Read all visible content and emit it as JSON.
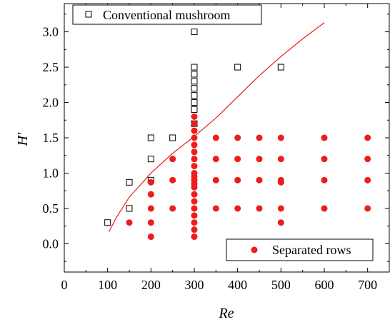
{
  "chart_data": {
    "type": "scatter",
    "xlabel": "Re",
    "ylabel": "H′",
    "xlim": [
      0,
      750
    ],
    "ylim": [
      -0.4,
      3.4
    ],
    "xticks": [
      0,
      100,
      200,
      300,
      400,
      500,
      600,
      700
    ],
    "yticks": [
      0.0,
      0.5,
      1.0,
      1.5,
      2.0,
      2.5,
      3.0
    ],
    "xtick_labels": [
      "0",
      "100",
      "200",
      "300",
      "400",
      "500",
      "600",
      "700"
    ],
    "ytick_labels": [
      "0.0",
      "0.5",
      "1.0",
      "1.5",
      "2.0",
      "2.5",
      "3.0"
    ],
    "grid": false,
    "colors": {
      "separated": "#ee1c1c",
      "curve": "#ee1c1c",
      "conventional": "#000000"
    },
    "series": [
      {
        "name": "Conventional mushroom",
        "marker": "open-square",
        "points": [
          [
            100,
            0.3
          ],
          [
            150,
            0.5
          ],
          [
            150,
            0.87
          ],
          [
            200,
            0.9
          ],
          [
            200,
            1.2
          ],
          [
            200,
            1.5
          ],
          [
            250,
            1.5
          ],
          [
            300,
            1.7
          ],
          [
            300,
            1.9
          ],
          [
            300,
            2.0
          ],
          [
            300,
            2.1
          ],
          [
            300,
            2.2
          ],
          [
            300,
            2.3
          ],
          [
            300,
            2.4
          ],
          [
            300,
            2.5
          ],
          [
            300,
            3.0
          ],
          [
            400,
            2.5
          ],
          [
            500,
            2.5
          ]
        ]
      },
      {
        "name": "Separated rows",
        "marker": "filled-circle",
        "points": [
          [
            150,
            0.3
          ],
          [
            200,
            0.1
          ],
          [
            200,
            0.3
          ],
          [
            200,
            0.5
          ],
          [
            200,
            0.7
          ],
          [
            200,
            0.87
          ],
          [
            250,
            0.5
          ],
          [
            250,
            0.9
          ],
          [
            250,
            1.2
          ],
          [
            300,
            0.1
          ],
          [
            300,
            0.2
          ],
          [
            300,
            0.3
          ],
          [
            300,
            0.4
          ],
          [
            300,
            0.5
          ],
          [
            300,
            0.6
          ],
          [
            300,
            0.7
          ],
          [
            300,
            0.8
          ],
          [
            300,
            0.85
          ],
          [
            300,
            0.9
          ],
          [
            300,
            0.95
          ],
          [
            300,
            1.0
          ],
          [
            300,
            1.1
          ],
          [
            300,
            1.2
          ],
          [
            300,
            1.3
          ],
          [
            300,
            1.4
          ],
          [
            300,
            1.5
          ],
          [
            300,
            1.6
          ],
          [
            300,
            1.7
          ],
          [
            300,
            1.8
          ],
          [
            350,
            0.5
          ],
          [
            350,
            0.9
          ],
          [
            350,
            1.2
          ],
          [
            350,
            1.5
          ],
          [
            400,
            0.5
          ],
          [
            400,
            0.9
          ],
          [
            400,
            1.2
          ],
          [
            400,
            1.5
          ],
          [
            450,
            0.5
          ],
          [
            450,
            0.9
          ],
          [
            450,
            1.2
          ],
          [
            450,
            1.5
          ],
          [
            500,
            0.3
          ],
          [
            500,
            0.5
          ],
          [
            500,
            0.87
          ],
          [
            500,
            0.9
          ],
          [
            500,
            1.2
          ],
          [
            500,
            1.5
          ],
          [
            600,
            0.5
          ],
          [
            600,
            0.9
          ],
          [
            600,
            1.2
          ],
          [
            600,
            1.5
          ],
          [
            700,
            0.5
          ],
          [
            700,
            0.9
          ],
          [
            700,
            1.2
          ],
          [
            700,
            1.5
          ]
        ]
      }
    ],
    "curve": {
      "name": "",
      "points": [
        [
          103,
          0.17
        ],
        [
          120,
          0.37
        ],
        [
          150,
          0.66
        ],
        [
          200,
          1.0
        ],
        [
          250,
          1.28
        ],
        [
          300,
          1.52
        ],
        [
          350,
          1.78
        ],
        [
          400,
          2.08
        ],
        [
          450,
          2.38
        ],
        [
          500,
          2.65
        ],
        [
          550,
          2.9
        ],
        [
          600,
          3.13
        ]
      ]
    },
    "legends": [
      {
        "position": "top-left",
        "label": "Conventional mushroom"
      },
      {
        "position": "bottom-right",
        "label": "Separated rows"
      }
    ]
  }
}
